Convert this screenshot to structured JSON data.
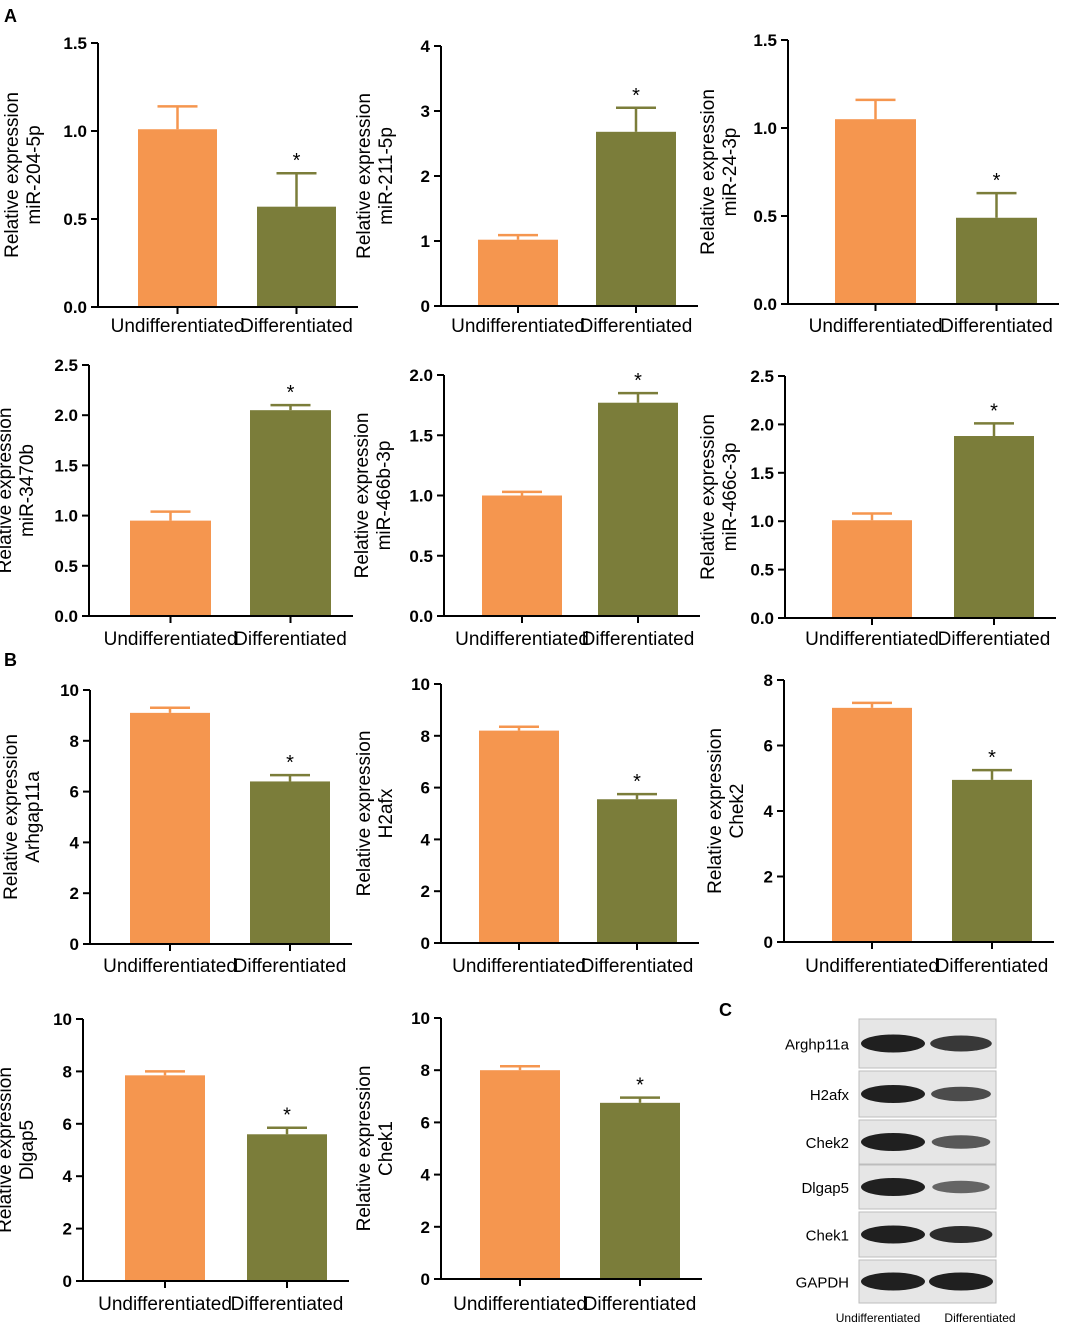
{
  "panel_labels": {
    "A": "A",
    "B": "B",
    "C": "C"
  },
  "colors": {
    "undifferentiated": "#F5964F",
    "differentiated": "#7B7D3A",
    "axis": "#000000",
    "blot_bg": "#e6e6e6",
    "band": "#151515"
  },
  "chart_data": [
    {
      "id": "mir204",
      "type": "bar",
      "panel": "A",
      "ylabel_top": "Relative expression",
      "ylabel_bottom": "miR-204-5p",
      "categories": [
        "Undifferentiated",
        "Differentiated"
      ],
      "values": [
        1.01,
        0.57
      ],
      "errors": [
        0.13,
        0.19
      ],
      "significance": [
        "",
        "*"
      ],
      "ylim": [
        0,
        1.5
      ],
      "yticks": [
        0.0,
        0.5,
        1.0,
        1.5
      ],
      "tick_labels": [
        "0.0",
        "0.5",
        "1.0",
        "1.5"
      ]
    },
    {
      "id": "mir211",
      "type": "bar",
      "panel": "A",
      "ylabel_top": "Relative expression",
      "ylabel_bottom": "miR-211-5p",
      "categories": [
        "Undifferentiated",
        "Differentiated"
      ],
      "values": [
        1.02,
        2.68
      ],
      "errors": [
        0.07,
        0.37
      ],
      "significance": [
        "",
        "*"
      ],
      "ylim": [
        0,
        4
      ],
      "yticks": [
        0,
        1,
        2,
        3,
        4
      ],
      "tick_labels": [
        "0",
        "1",
        "2",
        "3",
        "4"
      ]
    },
    {
      "id": "mir24",
      "type": "bar",
      "panel": "A",
      "ylabel_top": "Relative expression",
      "ylabel_bottom": "miR-24-3p",
      "categories": [
        "Undifferentiated",
        "Differentiated"
      ],
      "values": [
        1.05,
        0.49
      ],
      "errors": [
        0.11,
        0.14
      ],
      "significance": [
        "",
        "*"
      ],
      "ylim": [
        0,
        1.5
      ],
      "yticks": [
        0.0,
        0.5,
        1.0,
        1.5
      ],
      "tick_labels": [
        "0.0",
        "0.5",
        "1.0",
        "1.5"
      ]
    },
    {
      "id": "mir3470b",
      "type": "bar",
      "panel": "A",
      "ylabel_top": "Relative expression",
      "ylabel_bottom": "miR-3470b",
      "categories": [
        "Undifferentiated",
        "Differentiated"
      ],
      "values": [
        0.95,
        2.05
      ],
      "errors": [
        0.09,
        0.05
      ],
      "significance": [
        "",
        "*"
      ],
      "ylim": [
        0,
        2.5
      ],
      "yticks": [
        0.0,
        0.5,
        1.0,
        1.5,
        2.0,
        2.5
      ],
      "tick_labels": [
        "0.0",
        "0.5",
        "1.0",
        "1.5",
        "2.0",
        "2.5"
      ]
    },
    {
      "id": "mir466b",
      "type": "bar",
      "panel": "A",
      "ylabel_top": "Relative expression",
      "ylabel_bottom": "miR-466b-3p",
      "categories": [
        "Undifferentiated",
        "Differentiated"
      ],
      "values": [
        1.0,
        1.77
      ],
      "errors": [
        0.03,
        0.08
      ],
      "significance": [
        "",
        "*"
      ],
      "ylim": [
        0,
        2.0
      ],
      "yticks": [
        0.0,
        0.5,
        1.0,
        1.5,
        2.0
      ],
      "tick_labels": [
        "0.0",
        "0.5",
        "1.0",
        "1.5",
        "2.0"
      ]
    },
    {
      "id": "mir466c",
      "type": "bar",
      "panel": "A",
      "ylabel_top": "Relative expression",
      "ylabel_bottom": "miR-466c-3p",
      "categories": [
        "Undifferentiated",
        "Differentiated"
      ],
      "values": [
        1.01,
        1.88
      ],
      "errors": [
        0.07,
        0.13
      ],
      "significance": [
        "",
        "*"
      ],
      "ylim": [
        0,
        2.5
      ],
      "yticks": [
        0.0,
        0.5,
        1.0,
        1.5,
        2.0,
        2.5
      ],
      "tick_labels": [
        "0.0",
        "0.5",
        "1.0",
        "1.5",
        "2.0",
        "2.5"
      ]
    },
    {
      "id": "arhgap11a",
      "type": "bar",
      "panel": "B",
      "ylabel_top": "Relative expression",
      "ylabel_bottom": "Arhgap11a",
      "categories": [
        "Undifferentiated",
        "Differentiated"
      ],
      "values": [
        9.1,
        6.4
      ],
      "errors": [
        0.2,
        0.25
      ],
      "significance": [
        "",
        "*"
      ],
      "ylim": [
        0,
        10
      ],
      "yticks": [
        0,
        2,
        4,
        6,
        8,
        10
      ],
      "tick_labels": [
        "0",
        "2",
        "4",
        "6",
        "8",
        "10"
      ]
    },
    {
      "id": "h2afx",
      "type": "bar",
      "panel": "B",
      "ylabel_top": "Relative expression",
      "ylabel_bottom": "H2afx",
      "categories": [
        "Undifferentiated",
        "Differentiated"
      ],
      "values": [
        8.2,
        5.55
      ],
      "errors": [
        0.15,
        0.2
      ],
      "significance": [
        "",
        "*"
      ],
      "ylim": [
        0,
        10
      ],
      "yticks": [
        0,
        2,
        4,
        6,
        8,
        10
      ],
      "tick_labels": [
        "0",
        "2",
        "4",
        "6",
        "8",
        "10"
      ]
    },
    {
      "id": "chek2",
      "type": "bar",
      "panel": "B",
      "ylabel_top": "Relative expression",
      "ylabel_bottom": "Chek2",
      "categories": [
        "Undifferentiated",
        "Differentiated"
      ],
      "values": [
        7.15,
        4.95
      ],
      "errors": [
        0.15,
        0.3
      ],
      "significance": [
        "",
        "*"
      ],
      "ylim": [
        0,
        8
      ],
      "yticks": [
        0,
        2,
        4,
        6,
        8
      ],
      "tick_labels": [
        "0",
        "2",
        "4",
        "6",
        "8"
      ]
    },
    {
      "id": "dlgap5",
      "type": "bar",
      "panel": "B",
      "ylabel_top": "Relative expression",
      "ylabel_bottom": "Dlgap5",
      "categories": [
        "Undifferentiated",
        "Differentiated"
      ],
      "values": [
        7.85,
        5.6
      ],
      "errors": [
        0.15,
        0.25
      ],
      "significance": [
        "",
        "*"
      ],
      "ylim": [
        0,
        10
      ],
      "yticks": [
        0,
        2,
        4,
        6,
        8,
        10
      ],
      "tick_labels": [
        "0",
        "2",
        "4",
        "6",
        "8",
        "10"
      ]
    },
    {
      "id": "chek1",
      "type": "bar",
      "panel": "B",
      "ylabel_top": "Relative expression",
      "ylabel_bottom": "Chek1",
      "categories": [
        "Undifferentiated",
        "Differentiated"
      ],
      "values": [
        8.0,
        6.75
      ],
      "errors": [
        0.15,
        0.2
      ],
      "significance": [
        "",
        "*"
      ],
      "ylim": [
        0,
        10
      ],
      "yticks": [
        0,
        2,
        4,
        6,
        8,
        10
      ],
      "tick_labels": [
        "0",
        "2",
        "4",
        "6",
        "8",
        "10"
      ]
    }
  ],
  "western_blot": {
    "panel": "C",
    "proteins": [
      "Arghp11a",
      "H2afx",
      "Chek2",
      "Dlgap5",
      "Chek1",
      "GAPDH"
    ],
    "categories": [
      "Undifferentiated",
      "Differentiated"
    ],
    "relative_band_intensity": [
      [
        1.0,
        0.8
      ],
      [
        1.0,
        0.65
      ],
      [
        1.0,
        0.55
      ],
      [
        1.0,
        0.45
      ],
      [
        1.0,
        0.9
      ],
      [
        1.0,
        1.0
      ]
    ]
  }
}
